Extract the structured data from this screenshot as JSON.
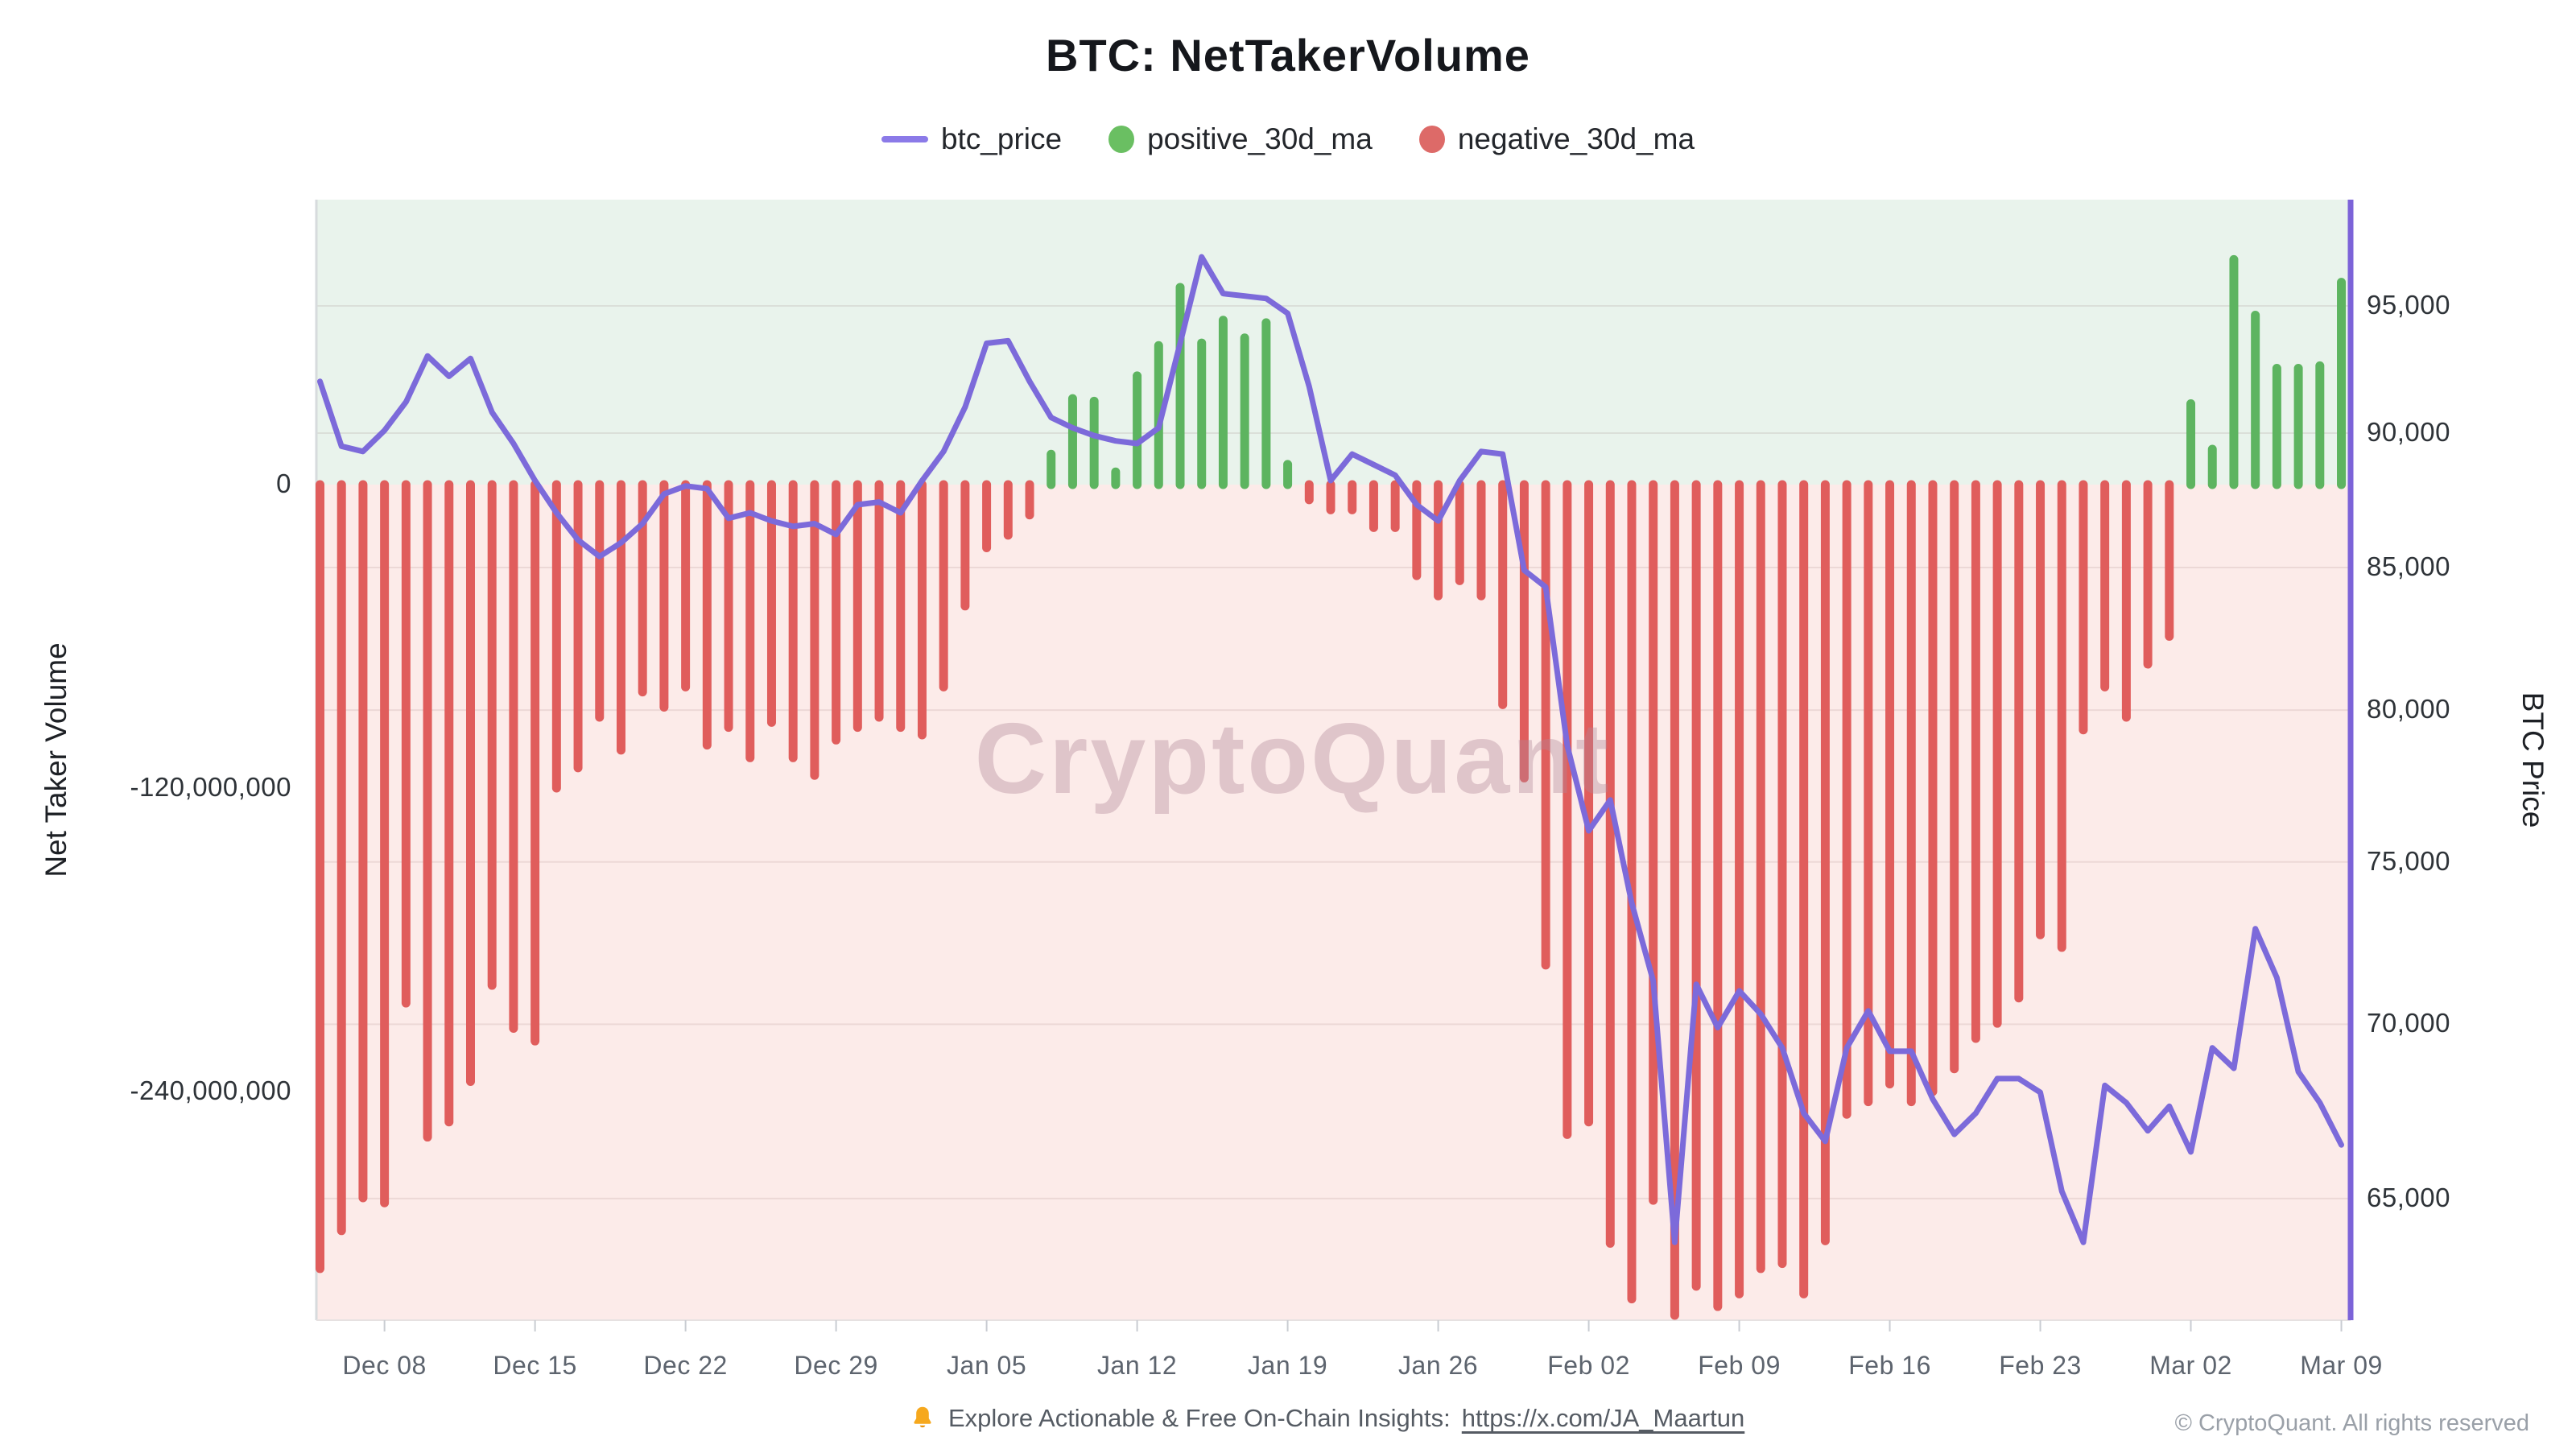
{
  "title": "BTC: NetTakerVolume",
  "watermark": "CryptoQuant",
  "legend": [
    {
      "label": "btc_price",
      "marker": "line",
      "color": "#8b7ae8"
    },
    {
      "label": "positive_30d_ma",
      "marker": "circle",
      "color": "#6abf62"
    },
    {
      "label": "negative_30d_ma",
      "marker": "circle",
      "color": "#dd6a68"
    }
  ],
  "axes": {
    "left": {
      "title": "Net Taker Volume",
      "ticks": [
        {
          "label": "0",
          "value": 0
        },
        {
          "label": "-120,000,000",
          "value": -120000000
        },
        {
          "label": "-240,000,000",
          "value": -240000000
        }
      ]
    },
    "right": {
      "title": "BTC Price",
      "ticks": [
        {
          "label": "95,000",
          "value": 95000
        },
        {
          "label": "90,000",
          "value": 90000
        },
        {
          "label": "85,000",
          "value": 85000
        },
        {
          "label": "80,000",
          "value": 80000
        },
        {
          "label": "75,000",
          "value": 75000
        },
        {
          "label": "70,000",
          "value": 70000
        },
        {
          "label": "65,000",
          "value": 65000
        }
      ]
    },
    "x": {
      "ticks": [
        {
          "label": "Dec 08",
          "day_index": 3
        },
        {
          "label": "Dec 15",
          "day_index": 10
        },
        {
          "label": "Dec 22",
          "day_index": 17
        },
        {
          "label": "Dec 29",
          "day_index": 24
        },
        {
          "label": "Jan 05",
          "day_index": 31
        },
        {
          "label": "Jan 12",
          "day_index": 38
        },
        {
          "label": "Jan 19",
          "day_index": 45
        },
        {
          "label": "Jan 26",
          "day_index": 52
        },
        {
          "label": "Feb 02",
          "day_index": 59
        },
        {
          "label": "Feb 09",
          "day_index": 66
        },
        {
          "label": "Feb 16",
          "day_index": 73
        },
        {
          "label": "Feb 23",
          "day_index": 80
        },
        {
          "label": "Mar 02",
          "day_index": 87
        },
        {
          "label": "Mar 09",
          "day_index": 94
        }
      ]
    }
  },
  "footer": {
    "insights_prefix": "Explore Actionable & Free On-Chain Insights: ",
    "insights_link": "https://x.com/JA_Maartun",
    "copyright": "© CryptoQuant. All rights reserved"
  },
  "chart_data": {
    "type": "mixed",
    "title": "BTC: NetTakerVolume",
    "legend_position": "top",
    "grid": "horizontal-faint",
    "x": [
      "Dec 05",
      "Dec 06",
      "Dec 07",
      "Dec 08",
      "Dec 09",
      "Dec 10",
      "Dec 11",
      "Dec 12",
      "Dec 13",
      "Dec 14",
      "Dec 15",
      "Dec 16",
      "Dec 17",
      "Dec 18",
      "Dec 19",
      "Dec 20",
      "Dec 21",
      "Dec 22",
      "Dec 23",
      "Dec 24",
      "Dec 25",
      "Dec 26",
      "Dec 27",
      "Dec 28",
      "Dec 29",
      "Dec 30",
      "Dec 31",
      "Jan 01",
      "Jan 02",
      "Jan 03",
      "Jan 04",
      "Jan 05",
      "Jan 06",
      "Jan 07",
      "Jan 08",
      "Jan 09",
      "Jan 10",
      "Jan 11",
      "Jan 12",
      "Jan 13",
      "Jan 14",
      "Jan 15",
      "Jan 16",
      "Jan 17",
      "Jan 18",
      "Jan 19",
      "Jan 20",
      "Jan 21",
      "Jan 22",
      "Jan 23",
      "Jan 24",
      "Jan 25",
      "Jan 26",
      "Jan 27",
      "Jan 28",
      "Jan 29",
      "Jan 30",
      "Jan 31",
      "Feb 01",
      "Feb 02",
      "Feb 03",
      "Feb 04",
      "Feb 05",
      "Feb 06",
      "Feb 07",
      "Feb 08",
      "Feb 09",
      "Feb 10",
      "Feb 11",
      "Feb 12",
      "Feb 13",
      "Feb 14",
      "Feb 15",
      "Feb 16",
      "Feb 17",
      "Feb 18",
      "Feb 19",
      "Feb 20",
      "Feb 21",
      "Feb 22",
      "Feb 23",
      "Feb 24",
      "Feb 25",
      "Feb 26",
      "Feb 27",
      "Feb 28",
      "Mar 01",
      "Mar 02",
      "Mar 03",
      "Mar 04",
      "Mar 05",
      "Mar 06",
      "Mar 07",
      "Mar 08",
      "Mar 09"
    ],
    "left_axis": {
      "label": "Net Taker Volume",
      "tick_values": [
        0,
        -120000000,
        -240000000
      ],
      "range": [
        -330000000,
        113000000
      ]
    },
    "right_axis": {
      "label": "BTC Price",
      "scale": "log",
      "tick_values": [
        95000,
        90000,
        85000,
        80000,
        75000,
        70000,
        65000
      ],
      "range": [
        62000,
        99000
      ]
    },
    "series": [
      {
        "name": "btc_price",
        "type": "line",
        "axis": "right",
        "color": "#7c6ada",
        "values": [
          92000,
          89500,
          89300,
          90100,
          91200,
          93000,
          92200,
          92900,
          90800,
          89600,
          88200,
          87000,
          86000,
          85400,
          85900,
          86600,
          87700,
          88000,
          87900,
          86800,
          87000,
          86700,
          86500,
          86600,
          86200,
          87300,
          87400,
          87000,
          88200,
          89300,
          91000,
          93500,
          93600,
          92000,
          90600,
          90200,
          89900,
          89700,
          89600,
          90200,
          93500,
          97000,
          95500,
          95400,
          95300,
          94700,
          91800,
          88200,
          89200,
          88800,
          88400,
          87300,
          86700,
          88200,
          89300,
          89200,
          84900,
          84300,
          78800,
          76000,
          77000,
          73700,
          71300,
          63800,
          71200,
          69900,
          71000,
          70300,
          69300,
          67400,
          66600,
          69300,
          70400,
          69200,
          69200,
          67800,
          66800,
          67400,
          68400,
          68400,
          68000,
          65200,
          63800,
          68200,
          67700,
          66900,
          67600,
          66300,
          69300,
          68700,
          72900,
          71400,
          68600,
          67700,
          66500
        ]
      },
      {
        "name": "positive_30d_ma",
        "type": "bar",
        "axis": "left",
        "color": "#5db460",
        "values": [
          null,
          null,
          null,
          null,
          null,
          null,
          null,
          null,
          null,
          null,
          null,
          null,
          null,
          null,
          null,
          null,
          null,
          null,
          null,
          null,
          null,
          null,
          null,
          null,
          null,
          null,
          null,
          null,
          null,
          null,
          null,
          null,
          null,
          null,
          12000000,
          34000000,
          33000000,
          5000000,
          43000000,
          55000000,
          78000000,
          56000000,
          65000000,
          58000000,
          64000000,
          8000000,
          null,
          null,
          null,
          null,
          null,
          null,
          null,
          null,
          null,
          null,
          null,
          null,
          null,
          null,
          null,
          null,
          null,
          null,
          null,
          null,
          null,
          null,
          null,
          null,
          null,
          null,
          null,
          null,
          null,
          null,
          null,
          null,
          null,
          null,
          null,
          null,
          null,
          null,
          null,
          null,
          null,
          32000000,
          14000000,
          89000000,
          67000000,
          46000000,
          46000000,
          47000000,
          80000000
        ]
      },
      {
        "name": "negative_30d_ma",
        "type": "bar",
        "axis": "left",
        "color": "#e05d5c",
        "values": [
          -310000000,
          -295000000,
          -282000000,
          -284000000,
          -205000000,
          -258000000,
          -252000000,
          -236000000,
          -198000000,
          -215000000,
          -220000000,
          -120000000,
          -112000000,
          -92000000,
          -105000000,
          -82000000,
          -88000000,
          -80000000,
          -103000000,
          -96000000,
          -108000000,
          -94000000,
          -108000000,
          -115000000,
          -101000000,
          -96000000,
          -92000000,
          -96000000,
          -99000000,
          -80000000,
          -48000000,
          -25000000,
          -20000000,
          -12000000,
          null,
          null,
          null,
          null,
          null,
          null,
          null,
          null,
          null,
          null,
          null,
          null,
          -6000000,
          -10000000,
          -10000000,
          -17000000,
          -17000000,
          -36000000,
          -44000000,
          -38000000,
          -44000000,
          -87000000,
          -116000000,
          -190000000,
          -257000000,
          -252000000,
          -300000000,
          -322000000,
          -283000000,
          -331000000,
          -317000000,
          -325000000,
          -320000000,
          -310000000,
          -308000000,
          -320000000,
          -299000000,
          -249000000,
          -244000000,
          -237000000,
          -244000000,
          -240000000,
          -231000000,
          -219000000,
          -213000000,
          -203000000,
          -178000000,
          -183000000,
          -97000000,
          -80000000,
          -92000000,
          -71000000,
          -60000000,
          null,
          null,
          null,
          null,
          null,
          null,
          null,
          null
        ]
      }
    ]
  }
}
